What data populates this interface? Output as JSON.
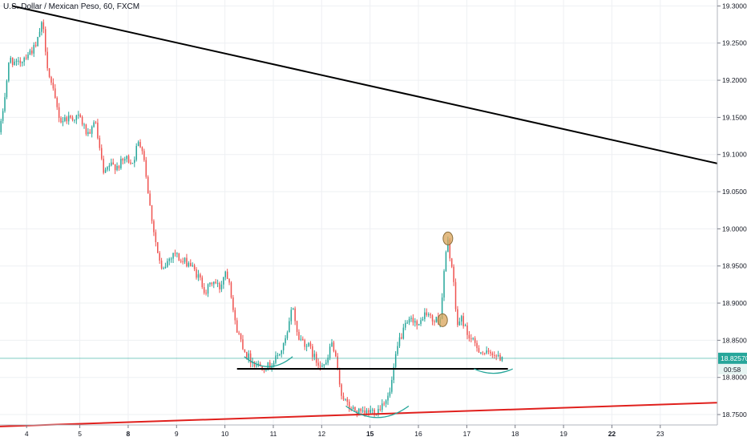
{
  "chart_data": {
    "type": "candlestick",
    "title": "U.S. Dollar / Mexican Peso, 60, FXCM",
    "symbol": "USDMXN",
    "interval": "60",
    "source": "FXCM",
    "x_tick_labels": [
      {
        "x": 3.9,
        "label": "4",
        "bold": false
      },
      {
        "x": 5.0,
        "label": "5",
        "bold": false
      },
      {
        "x": 6.0,
        "label": "8",
        "bold": true
      },
      {
        "x": 7.0,
        "label": "9",
        "bold": false
      },
      {
        "x": 8.0,
        "label": "10",
        "bold": false
      },
      {
        "x": 9.0,
        "label": "11",
        "bold": false
      },
      {
        "x": 10.0,
        "label": "12",
        "bold": false
      },
      {
        "x": 11.0,
        "label": "15",
        "bold": true
      },
      {
        "x": 12.0,
        "label": "16",
        "bold": false
      },
      {
        "x": 13.0,
        "label": "17",
        "bold": false
      },
      {
        "x": 14.0,
        "label": "18",
        "bold": false
      },
      {
        "x": 15.0,
        "label": "19",
        "bold": false
      },
      {
        "x": 16.0,
        "label": "22",
        "bold": true
      },
      {
        "x": 17.0,
        "label": "23",
        "bold": false
      }
    ],
    "y_tick_labels": [
      "19.30000",
      "19.25000",
      "19.20000",
      "19.15000",
      "19.10000",
      "19.05000",
      "19.00000",
      "18.95000",
      "18.90000",
      "18.85000",
      "18.80000",
      "18.75000"
    ],
    "y_ticks": [
      19.3,
      19.25,
      19.2,
      19.15,
      19.1,
      19.05,
      19.0,
      18.95,
      18.9,
      18.85,
      18.8,
      18.75
    ],
    "ylim": [
      18.736,
      19.308
    ],
    "xlim": [
      3.35,
      18.18
    ],
    "last_price": 18.8257,
    "last_price_label": "18.82570",
    "countdown_label": "00:58",
    "grid": true,
    "colors": {
      "up": "#26a69a",
      "down": "#ef5350",
      "grid": "#eef0f3",
      "last_price_line": "#26a69a",
      "resistance": "#000000",
      "support": "#e0201d",
      "neckline": "#000000",
      "arc": "#26a69a",
      "marker_fill": "#d9a45a",
      "marker_stroke": "#8a6d3b"
    },
    "candle_path": [
      [
        3.35,
        19.13
      ],
      [
        3.45,
        19.18
      ],
      [
        3.55,
        19.23
      ],
      [
        3.7,
        19.22
      ],
      [
        3.9,
        19.235
      ],
      [
        4.1,
        19.245
      ],
      [
        4.2,
        19.275
      ],
      [
        4.25,
        19.265
      ],
      [
        4.35,
        19.21
      ],
      [
        4.5,
        19.17
      ],
      [
        4.6,
        19.145
      ],
      [
        4.75,
        19.15
      ],
      [
        5.0,
        19.15
      ],
      [
        5.1,
        19.135
      ],
      [
        5.2,
        19.12
      ],
      [
        5.3,
        19.15
      ],
      [
        5.4,
        19.11
      ],
      [
        5.5,
        19.07
      ],
      [
        5.6,
        19.085
      ],
      [
        5.8,
        19.085
      ],
      [
        5.95,
        19.095
      ],
      [
        6.1,
        19.09
      ],
      [
        6.2,
        19.115
      ],
      [
        6.3,
        19.11
      ],
      [
        6.45,
        19.03
      ],
      [
        6.6,
        18.97
      ],
      [
        6.7,
        18.94
      ],
      [
        6.8,
        18.955
      ],
      [
        6.95,
        18.97
      ],
      [
        7.1,
        18.955
      ],
      [
        7.25,
        18.955
      ],
      [
        7.4,
        18.94
      ],
      [
        7.5,
        18.93
      ],
      [
        7.6,
        18.915
      ],
      [
        7.75,
        18.93
      ],
      [
        7.9,
        18.92
      ],
      [
        8.0,
        18.945
      ],
      [
        8.1,
        18.93
      ],
      [
        8.2,
        18.875
      ],
      [
        8.3,
        18.855
      ],
      [
        8.45,
        18.83
      ],
      [
        8.6,
        18.82
      ],
      [
        8.75,
        18.815
      ],
      [
        8.9,
        18.815
      ],
      [
        9.0,
        18.82
      ],
      [
        9.1,
        18.83
      ],
      [
        9.2,
        18.84
      ],
      [
        9.3,
        18.86
      ],
      [
        9.4,
        18.9
      ],
      [
        9.5,
        18.855
      ],
      [
        9.6,
        18.85
      ],
      [
        9.75,
        18.84
      ],
      [
        9.9,
        18.82
      ],
      [
        10.0,
        18.82
      ],
      [
        10.1,
        18.815
      ],
      [
        10.2,
        18.85
      ],
      [
        10.3,
        18.82
      ],
      [
        10.4,
        18.78
      ],
      [
        10.55,
        18.76
      ],
      [
        10.7,
        18.755
      ],
      [
        10.85,
        18.75
      ],
      [
        11.0,
        18.755
      ],
      [
        11.15,
        18.755
      ],
      [
        11.3,
        18.77
      ],
      [
        11.4,
        18.775
      ],
      [
        11.5,
        18.815
      ],
      [
        11.6,
        18.85
      ],
      [
        11.75,
        18.87
      ],
      [
        11.9,
        18.88
      ],
      [
        12.0,
        18.865
      ],
      [
        12.1,
        18.885
      ],
      [
        12.2,
        18.885
      ],
      [
        12.3,
        18.875
      ],
      [
        12.45,
        18.88
      ],
      [
        12.55,
        18.955
      ],
      [
        12.6,
        18.985
      ],
      [
        12.7,
        18.945
      ],
      [
        12.8,
        18.87
      ],
      [
        12.9,
        18.88
      ],
      [
        13.0,
        18.86
      ],
      [
        13.15,
        18.845
      ],
      [
        13.3,
        18.835
      ],
      [
        13.45,
        18.83
      ],
      [
        13.55,
        18.835
      ],
      [
        13.65,
        18.825
      ],
      [
        13.75,
        18.83
      ]
    ],
    "candles": [],
    "annotations": {
      "resistance_line": {
        "from": [
          3.6,
          19.3
        ],
        "to": [
          18.18,
          19.088
        ]
      },
      "support_line": {
        "from": [
          3.35,
          18.734
        ],
        "to": [
          18.18,
          18.766
        ]
      },
      "neckline": {
        "from": [
          8.25,
          18.8115
        ],
        "to": [
          13.85,
          18.8115
        ]
      },
      "arcs": [
        {
          "x1": 8.4,
          "x2": 9.4,
          "y_top": 18.828,
          "y_bottom": 18.8145
        },
        {
          "x1": 10.5,
          "x2": 11.8,
          "y_top": 18.7615,
          "y_bottom": 18.746
        },
        {
          "x1": 13.15,
          "x2": 13.95,
          "y_top": 18.8115,
          "y_bottom": 18.8055
        }
      ],
      "markers": [
        {
          "x": 12.61,
          "y": 18.987
        },
        {
          "x": 12.5,
          "y": 18.877
        }
      ]
    }
  }
}
